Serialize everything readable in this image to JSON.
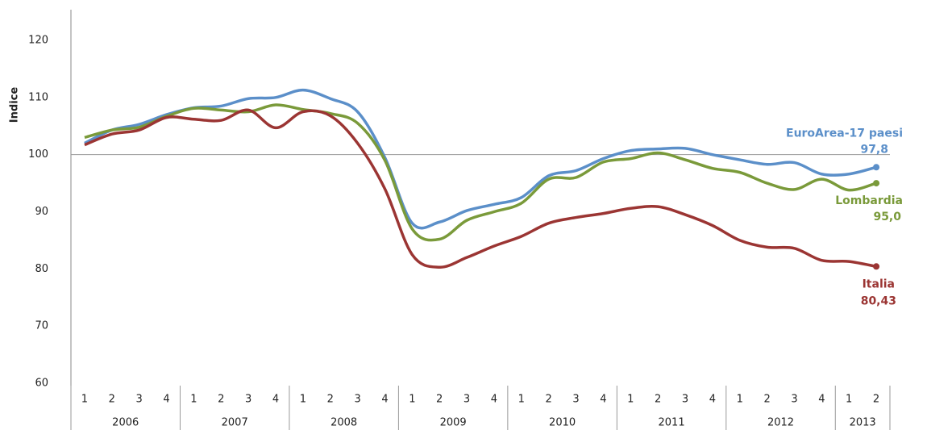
{
  "chart_data": {
    "type": "line",
    "y_label": "Indice",
    "groups": [
      {
        "label": "2006",
        "categories": [
          "1",
          "2",
          "3",
          "4"
        ]
      },
      {
        "label": "2007",
        "categories": [
          "1",
          "2",
          "3",
          "4"
        ]
      },
      {
        "label": "2008",
        "categories": [
          "1",
          "2",
          "3",
          "4"
        ]
      },
      {
        "label": "2009",
        "categories": [
          "1",
          "2",
          "3",
          "4"
        ]
      },
      {
        "label": "2010",
        "categories": [
          "1",
          "2",
          "3",
          "4"
        ]
      },
      {
        "label": "2011",
        "categories": [
          "1",
          "2",
          "3",
          "4"
        ]
      },
      {
        "label": "2012",
        "categories": [
          "1",
          "2",
          "3",
          "4"
        ]
      },
      {
        "label": "2013",
        "categories": [
          "1",
          "2"
        ]
      }
    ],
    "ylim": [
      60,
      120
    ],
    "yticks": [
      60,
      70,
      80,
      90,
      100,
      110,
      120
    ],
    "reference_line": 100,
    "series": [
      {
        "name": "EuroArea-17 paesi",
        "color": "#5b8fc9",
        "values": [
          102.0,
          104.3,
          105.3,
          107.0,
          108.2,
          108.5,
          109.8,
          110.0,
          111.3,
          109.8,
          107.5,
          99.5,
          88.0,
          88.2,
          90.2,
          91.3,
          92.5,
          96.3,
          97.2,
          99.3,
          100.7,
          101.0,
          101.1,
          100.0,
          99.1,
          98.3,
          98.6,
          96.6,
          96.6,
          97.8
        ],
        "value_labels": [
          null,
          null,
          null,
          null,
          null,
          null,
          null,
          null,
          null,
          null,
          null,
          null,
          null,
          null,
          null,
          null,
          null,
          null,
          null,
          null,
          null,
          null,
          null,
          null,
          null,
          null,
          null,
          null,
          null,
          "97,8"
        ]
      },
      {
        "name": "Lombardia",
        "color": "#7a9a3a",
        "values": [
          103.0,
          104.3,
          104.8,
          106.7,
          108.1,
          107.8,
          107.5,
          108.7,
          107.9,
          107.2,
          105.5,
          99.0,
          87.0,
          85.2,
          88.5,
          90.0,
          91.5,
          95.7,
          96.0,
          98.7,
          99.3,
          100.3,
          99.1,
          97.6,
          96.9,
          95.0,
          93.9,
          95.7,
          93.8,
          95.0
        ],
        "value_labels": [
          null,
          null,
          null,
          null,
          null,
          null,
          null,
          null,
          null,
          null,
          null,
          null,
          null,
          null,
          null,
          null,
          null,
          null,
          null,
          null,
          null,
          null,
          null,
          null,
          null,
          null,
          null,
          null,
          null,
          "95,0"
        ]
      },
      {
        "name": "Italia",
        "color": "#9b3533",
        "values": [
          101.7,
          103.6,
          104.3,
          106.5,
          106.2,
          106.0,
          107.8,
          104.7,
          107.5,
          106.8,
          102.0,
          94.0,
          82.5,
          80.3,
          82.0,
          84.0,
          85.7,
          88.0,
          89.0,
          89.7,
          90.6,
          90.9,
          89.5,
          87.6,
          85.0,
          83.8,
          83.6,
          81.5,
          81.3,
          80.43
        ],
        "value_labels": [
          null,
          null,
          null,
          null,
          null,
          null,
          null,
          null,
          null,
          null,
          null,
          null,
          null,
          null,
          null,
          null,
          null,
          null,
          null,
          null,
          null,
          null,
          null,
          null,
          null,
          null,
          null,
          null,
          null,
          "80,43"
        ]
      }
    ]
  }
}
